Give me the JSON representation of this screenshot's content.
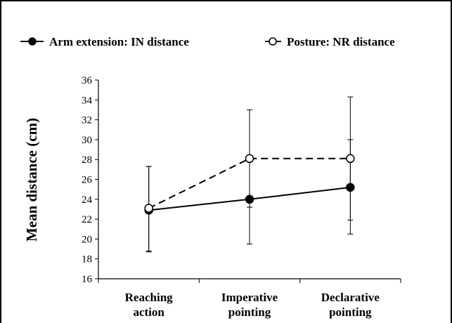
{
  "chart_data": {
    "type": "line",
    "title": "",
    "xlabel": "",
    "ylabel": "Mean distance (cm)",
    "ylim": [
      16,
      36
    ],
    "yticks": [
      "16",
      "18",
      "20",
      "22",
      "24",
      "26",
      "28",
      "30",
      "32",
      "34",
      "36"
    ],
    "categories": [
      [
        "Reaching",
        "action"
      ],
      [
        "Imperative",
        "pointing"
      ],
      [
        "Declarative",
        "pointing"
      ]
    ],
    "grid": false,
    "legend_position": "top",
    "series": [
      {
        "name": "Arm extension: IN distance",
        "marker": "filled-circle",
        "line": "solid",
        "values": [
          22.9,
          24.0,
          25.2
        ],
        "error_low": [
          18.7,
          19.5,
          20.5
        ],
        "error_high": [
          27.3,
          28.3,
          30.0
        ],
        "color": "#000000"
      },
      {
        "name": "Posture: NR distance",
        "marker": "open-circle",
        "line": "dashed",
        "values": [
          23.1,
          28.1,
          28.1
        ],
        "error_low": [
          18.8,
          23.2,
          21.9
        ],
        "error_high": [
          27.3,
          33.0,
          34.3
        ],
        "color": "#000000"
      }
    ]
  }
}
